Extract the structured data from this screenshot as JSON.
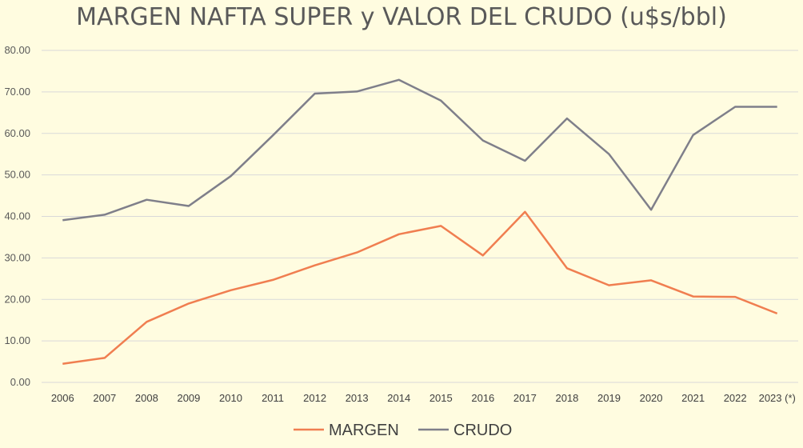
{
  "chart_data": {
    "type": "line",
    "title": "MARGEN NAFTA SUPER y VALOR DEL CRUDO (u$s/bbl)",
    "xlabel": "",
    "ylabel": "",
    "categories": [
      "2006",
      "2007",
      "2008",
      "2009",
      "2010",
      "2011",
      "2012",
      "2013",
      "2014",
      "2015",
      "2016",
      "2017",
      "2018",
      "2019",
      "2020",
      "2021",
      "2022",
      "2023 (*)"
    ],
    "y_ticks": [
      "0.00",
      "10.00",
      "20.00",
      "30.00",
      "40.00",
      "50.00",
      "60.00",
      "70.00",
      "80.00"
    ],
    "ylim": [
      0,
      80
    ],
    "grid": true,
    "legend_position": "bottom",
    "series": [
      {
        "name": "MARGEN",
        "color": "#F07E50",
        "values": [
          4.5,
          5.9,
          14.6,
          19.0,
          22.2,
          24.7,
          28.2,
          31.3,
          35.7,
          37.7,
          30.6,
          41.1,
          27.5,
          23.4,
          24.6,
          20.7,
          20.6,
          16.6
        ]
      },
      {
        "name": "CRUDO",
        "color": "#7F7F8A",
        "values": [
          39.1,
          40.4,
          44.0,
          42.5,
          49.7,
          59.5,
          69.6,
          70.1,
          72.9,
          67.9,
          58.3,
          53.4,
          63.6,
          55.0,
          41.6,
          59.6,
          66.4,
          66.4
        ]
      }
    ]
  }
}
